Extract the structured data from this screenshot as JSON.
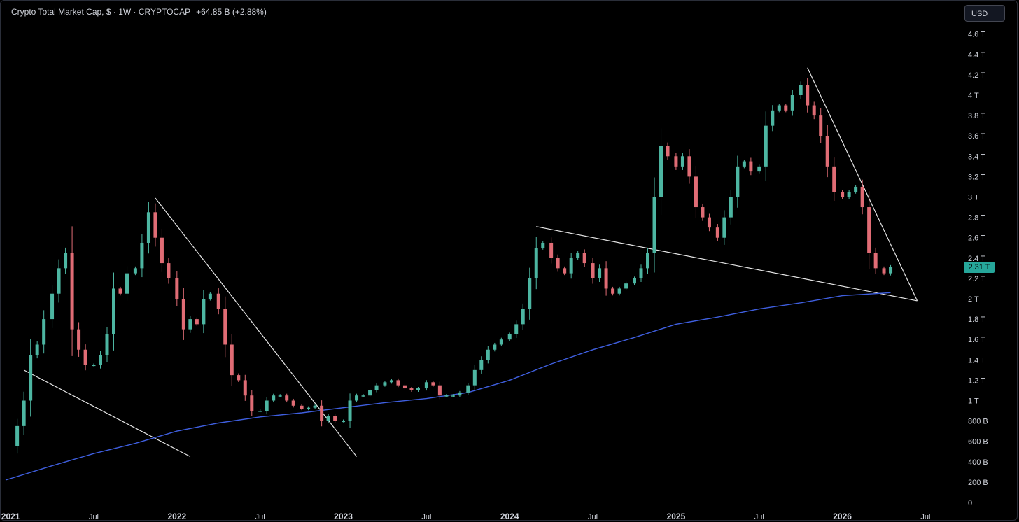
{
  "header": {
    "symbol": "Crypto Total Market Cap, $",
    "interval": "1W",
    "exchange": "CRYPTOCAP",
    "change": "+64.85 B (+2.88%)"
  },
  "currency_button": "USD",
  "last_price_label": "2.31 T",
  "colors": {
    "background": "#000000",
    "up": "#4db6a2",
    "down": "#e06c75",
    "ma_line": "#3f5fe0",
    "trendline": "#e6e6e6",
    "price_tag": "#26a69a"
  },
  "chart_data": {
    "type": "candlestick",
    "x_ticks": [
      "2021",
      "Jul",
      "2022",
      "Jul",
      "2023",
      "Jul",
      "2024",
      "Jul",
      "2025",
      "Jul",
      "2026",
      "Jul"
    ],
    "y_ticks": [
      "0",
      "200 B",
      "400 B",
      "600 B",
      "800 B",
      "1 T",
      "1.2 T",
      "1.4 T",
      "1.6 T",
      "1.8 T",
      "2 T",
      "2.2 T",
      "2.4 T",
      "2.6 T",
      "2.8 T",
      "3 T",
      "3.2 T",
      "3.4 T",
      "3.6 T",
      "3.8 T",
      "4 T",
      "4.2 T",
      "4.4 T",
      "4.6 T"
    ],
    "ylim": [
      0,
      4.6
    ],
    "xlim": [
      2020.97,
      2026.7
    ],
    "unit": "T",
    "last_close": 2.31,
    "close_series": [
      [
        2021.0,
        0.55
      ],
      [
        2021.04,
        0.75
      ],
      [
        2021.08,
        1.0
      ],
      [
        2021.12,
        1.45
      ],
      [
        2021.16,
        1.55
      ],
      [
        2021.2,
        1.8
      ],
      [
        2021.25,
        2.05
      ],
      [
        2021.29,
        2.3
      ],
      [
        2021.33,
        2.45
      ],
      [
        2021.37,
        1.7
      ],
      [
        2021.41,
        1.5
      ],
      [
        2021.45,
        1.35
      ],
      [
        2021.5,
        1.35
      ],
      [
        2021.54,
        1.45
      ],
      [
        2021.58,
        1.65
      ],
      [
        2021.62,
        2.1
      ],
      [
        2021.66,
        2.05
      ],
      [
        2021.7,
        2.25
      ],
      [
        2021.75,
        2.3
      ],
      [
        2021.79,
        2.55
      ],
      [
        2021.83,
        2.85
      ],
      [
        2021.87,
        2.6
      ],
      [
        2021.91,
        2.35
      ],
      [
        2021.95,
        2.2
      ],
      [
        2022.0,
        2.0
      ],
      [
        2022.04,
        1.7
      ],
      [
        2022.08,
        1.8
      ],
      [
        2022.12,
        1.75
      ],
      [
        2022.16,
        2.0
      ],
      [
        2022.2,
        2.05
      ],
      [
        2022.25,
        1.9
      ],
      [
        2022.29,
        1.55
      ],
      [
        2022.33,
        1.25
      ],
      [
        2022.37,
        1.2
      ],
      [
        2022.41,
        1.05
      ],
      [
        2022.45,
        0.9
      ],
      [
        2022.5,
        0.9
      ],
      [
        2022.54,
        1.0
      ],
      [
        2022.58,
        1.05
      ],
      [
        2022.62,
        1.05
      ],
      [
        2022.66,
        1.0
      ],
      [
        2022.7,
        0.95
      ],
      [
        2022.75,
        0.92
      ],
      [
        2022.79,
        0.93
      ],
      [
        2022.83,
        0.95
      ],
      [
        2022.87,
        0.8
      ],
      [
        2022.91,
        0.85
      ],
      [
        2022.95,
        0.8
      ],
      [
        2023.0,
        0.8
      ],
      [
        2023.04,
        1.0
      ],
      [
        2023.08,
        1.05
      ],
      [
        2023.12,
        1.05
      ],
      [
        2023.16,
        1.1
      ],
      [
        2023.2,
        1.15
      ],
      [
        2023.25,
        1.18
      ],
      [
        2023.29,
        1.2
      ],
      [
        2023.33,
        1.15
      ],
      [
        2023.37,
        1.12
      ],
      [
        2023.41,
        1.1
      ],
      [
        2023.45,
        1.12
      ],
      [
        2023.5,
        1.18
      ],
      [
        2023.54,
        1.15
      ],
      [
        2023.58,
        1.05
      ],
      [
        2023.62,
        1.05
      ],
      [
        2023.66,
        1.05
      ],
      [
        2023.7,
        1.08
      ],
      [
        2023.75,
        1.15
      ],
      [
        2023.79,
        1.3
      ],
      [
        2023.83,
        1.4
      ],
      [
        2023.87,
        1.5
      ],
      [
        2023.91,
        1.55
      ],
      [
        2023.95,
        1.6
      ],
      [
        2024.0,
        1.65
      ],
      [
        2024.04,
        1.75
      ],
      [
        2024.08,
        1.9
      ],
      [
        2024.12,
        2.2
      ],
      [
        2024.16,
        2.5
      ],
      [
        2024.2,
        2.55
      ],
      [
        2024.25,
        2.4
      ],
      [
        2024.29,
        2.3
      ],
      [
        2024.33,
        2.25
      ],
      [
        2024.37,
        2.4
      ],
      [
        2024.41,
        2.45
      ],
      [
        2024.45,
        2.35
      ],
      [
        2024.5,
        2.2
      ],
      [
        2024.54,
        2.3
      ],
      [
        2024.58,
        2.1
      ],
      [
        2024.62,
        2.05
      ],
      [
        2024.66,
        2.1
      ],
      [
        2024.7,
        2.15
      ],
      [
        2024.75,
        2.2
      ],
      [
        2024.79,
        2.3
      ],
      [
        2024.83,
        2.45
      ],
      [
        2024.87,
        3.0
      ],
      [
        2024.91,
        3.5
      ],
      [
        2024.95,
        3.4
      ],
      [
        2025.0,
        3.3
      ],
      [
        2025.04,
        3.4
      ],
      [
        2025.08,
        3.2
      ],
      [
        2025.12,
        2.9
      ],
      [
        2025.16,
        2.8
      ],
      [
        2025.2,
        2.7
      ],
      [
        2025.25,
        2.6
      ],
      [
        2025.29,
        2.8
      ],
      [
        2025.33,
        3.0
      ],
      [
        2025.37,
        3.3
      ],
      [
        2025.41,
        3.35
      ],
      [
        2025.45,
        3.25
      ],
      [
        2025.5,
        3.3
      ],
      [
        2025.54,
        3.7
      ],
      [
        2025.58,
        3.85
      ],
      [
        2025.62,
        3.9
      ],
      [
        2025.66,
        3.85
      ],
      [
        2025.7,
        4.0
      ],
      [
        2025.75,
        4.1
      ],
      [
        2025.79,
        3.9
      ],
      [
        2025.83,
        3.8
      ],
      [
        2025.87,
        3.6
      ],
      [
        2025.91,
        3.3
      ],
      [
        2025.95,
        3.05
      ],
      [
        2026.0,
        3.0
      ],
      [
        2026.04,
        3.05
      ],
      [
        2026.08,
        3.1
      ],
      [
        2026.12,
        2.9
      ],
      [
        2026.16,
        2.45
      ],
      [
        2026.2,
        2.3
      ],
      [
        2026.25,
        2.25
      ],
      [
        2026.29,
        2.31
      ]
    ],
    "moving_average": [
      [
        2020.97,
        0.22
      ],
      [
        2021.25,
        0.36
      ],
      [
        2021.5,
        0.48
      ],
      [
        2021.75,
        0.58
      ],
      [
        2022.0,
        0.7
      ],
      [
        2022.25,
        0.78
      ],
      [
        2022.5,
        0.84
      ],
      [
        2022.75,
        0.88
      ],
      [
        2023.0,
        0.93
      ],
      [
        2023.25,
        0.98
      ],
      [
        2023.5,
        1.02
      ],
      [
        2023.75,
        1.08
      ],
      [
        2024.0,
        1.2
      ],
      [
        2024.25,
        1.36
      ],
      [
        2024.5,
        1.5
      ],
      [
        2024.75,
        1.62
      ],
      [
        2025.0,
        1.75
      ],
      [
        2025.25,
        1.82
      ],
      [
        2025.5,
        1.9
      ],
      [
        2025.75,
        1.96
      ],
      [
        2026.0,
        2.03
      ],
      [
        2026.29,
        2.06
      ]
    ],
    "trendlines": [
      [
        [
          2021.08,
          1.3
        ],
        [
          2022.08,
          0.45
        ]
      ],
      [
        [
          2021.87,
          2.99
        ],
        [
          2023.08,
          0.45
        ]
      ],
      [
        [
          2024.16,
          2.71
        ],
        [
          2026.45,
          1.98
        ]
      ],
      [
        [
          2025.79,
          4.27
        ],
        [
          2026.45,
          1.98
        ]
      ]
    ]
  }
}
